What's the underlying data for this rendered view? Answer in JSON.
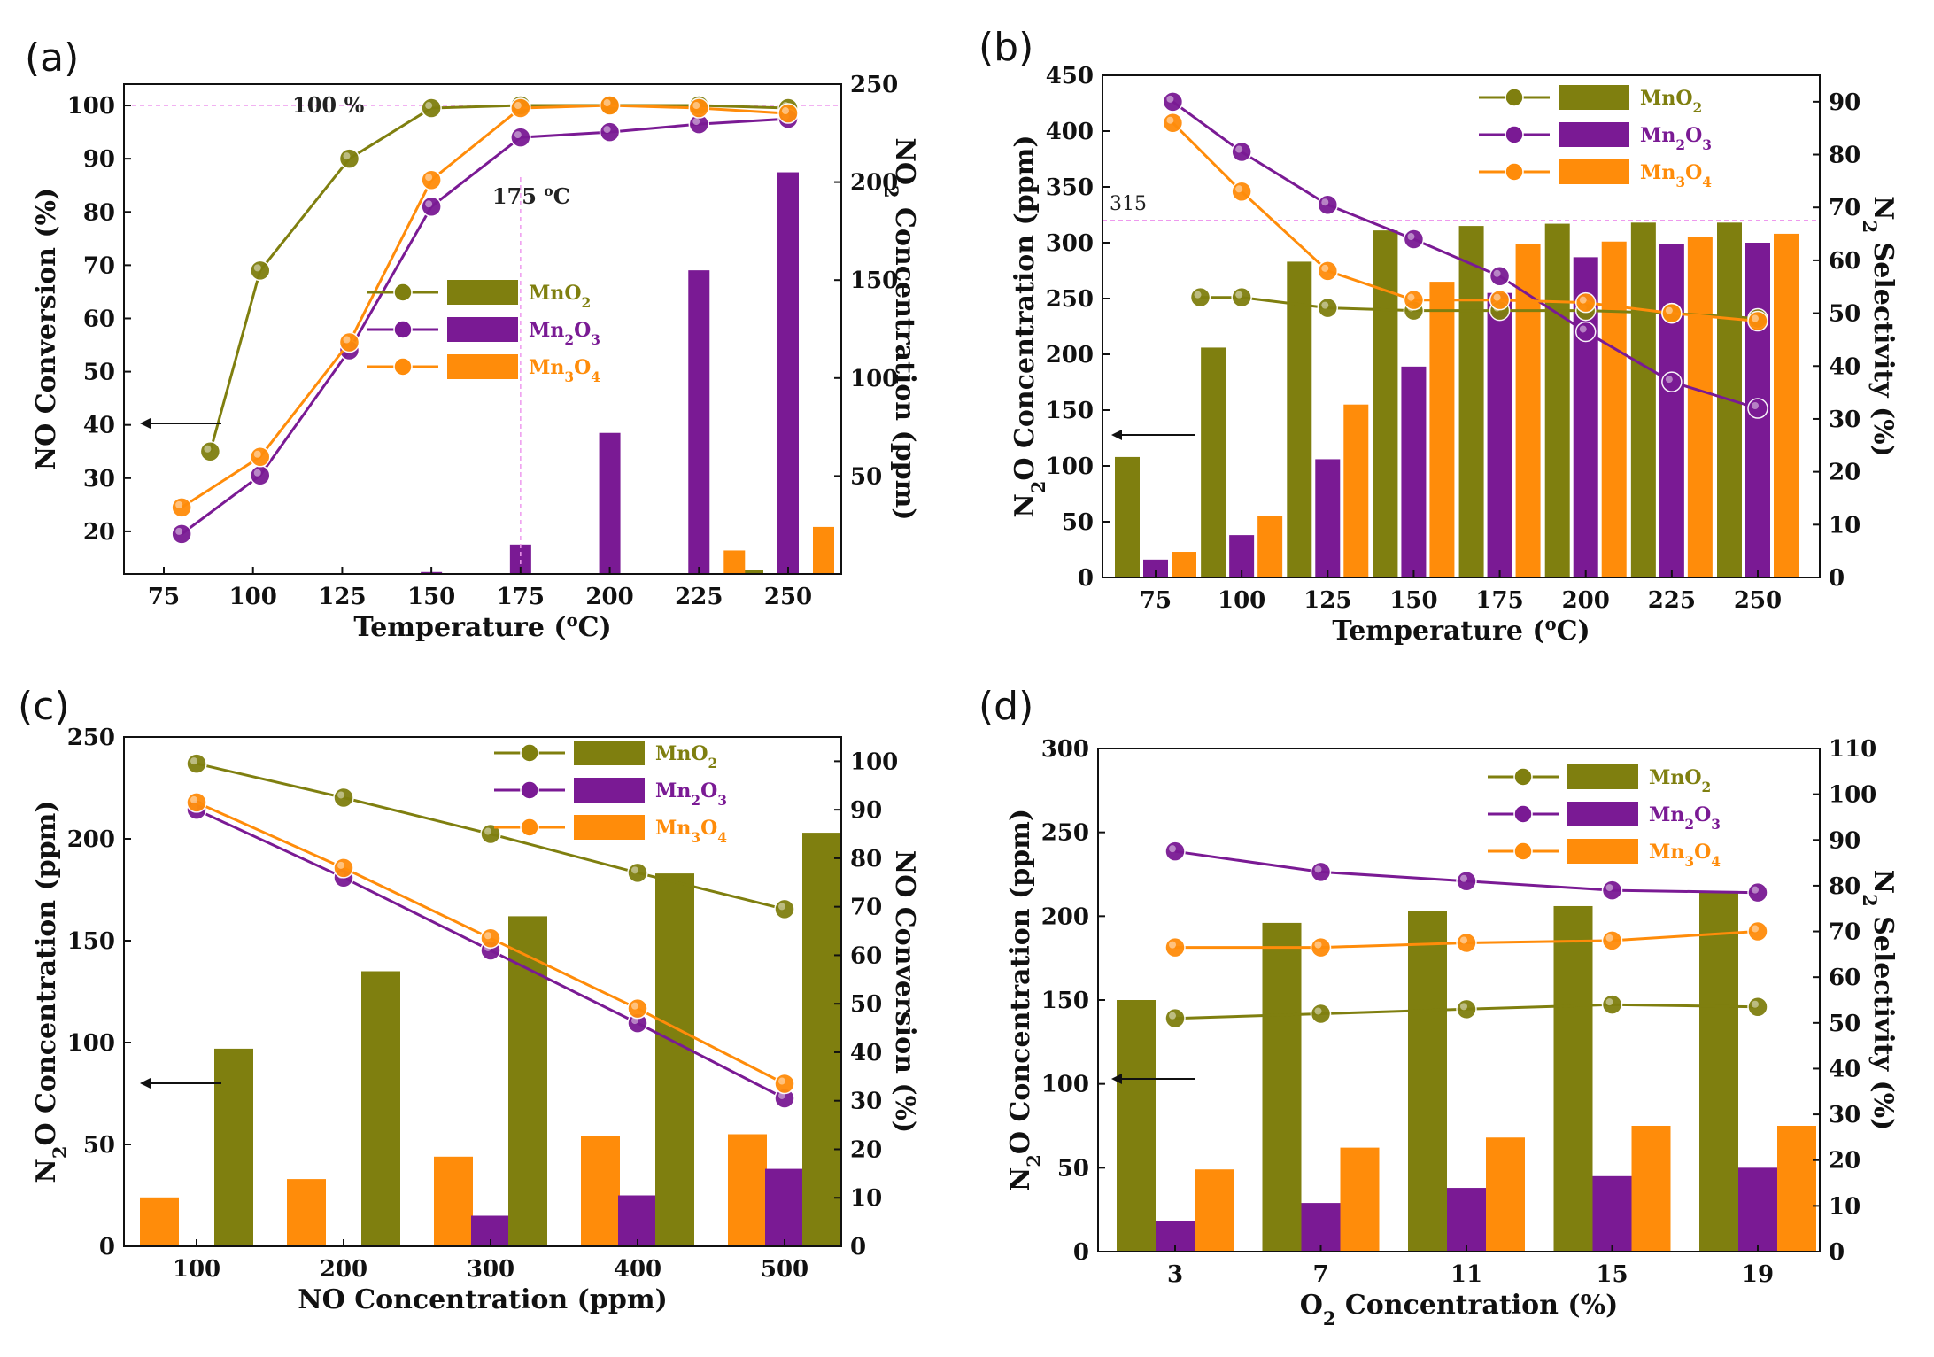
{
  "chart_data": [
    {
      "id": "a",
      "panel_label": "(a)",
      "type": "line+bar",
      "xlabel": "Temperature (°C)",
      "ylabel_left": "NO Conversion (%)",
      "ylabel_right": "NO2 Concentration (ppm)",
      "categories": [
        75,
        100,
        125,
        150,
        175,
        200,
        225,
        250
      ],
      "ylim_left": [
        12,
        104
      ],
      "ylim_right": [
        0,
        250
      ],
      "yticks_left": [
        20,
        30,
        40,
        50,
        60,
        70,
        80,
        90,
        100
      ],
      "yticks_right": [
        50,
        100,
        150,
        200,
        250
      ],
      "legend": [
        "MnO2",
        "Mn2O3",
        "Mn3O4"
      ],
      "annotations": [
        "100 %",
        "175 °C"
      ],
      "bar_series": [
        {
          "name": "MnO2",
          "values": [
            0,
            0,
            0,
            0,
            0,
            0,
            0,
            2
          ]
        },
        {
          "name": "Mn2O3",
          "values": [
            0,
            0,
            0,
            1,
            15,
            72,
            155,
            205
          ]
        },
        {
          "name": "Mn3O4",
          "values": [
            0,
            0,
            0,
            0,
            0,
            0,
            12,
            24
          ]
        }
      ],
      "line_series": [
        {
          "name": "MnO2",
          "x": [
            88,
            102,
            127,
            150,
            175,
            200,
            225,
            250
          ],
          "y": [
            35,
            69,
            90,
            99.5,
            100,
            100,
            100,
            99.5
          ]
        },
        {
          "name": "Mn2O3",
          "x": [
            80,
            102,
            127,
            150,
            175,
            200,
            225,
            250
          ],
          "y": [
            19.5,
            30.5,
            54,
            81,
            94,
            95,
            96.5,
            97.5
          ]
        },
        {
          "name": "Mn3O4",
          "x": [
            80,
            102,
            127,
            150,
            175,
            200,
            225,
            250
          ],
          "y": [
            24.5,
            34,
            55.5,
            86,
            99.5,
            100,
            99.5,
            98.5
          ]
        }
      ]
    },
    {
      "id": "b",
      "panel_label": "(b)",
      "type": "line+bar",
      "xlabel": "Temperature (°C)",
      "ylabel_left": "N2O Concentration (ppm)",
      "ylabel_right": "N2 Selectivity (%)",
      "categories": [
        75,
        100,
        125,
        150,
        175,
        200,
        225,
        250
      ],
      "ylim_left": [
        0,
        450
      ],
      "ylim_right": [
        0,
        95
      ],
      "yticks_left": [
        0,
        50,
        100,
        150,
        200,
        250,
        300,
        350,
        400,
        450
      ],
      "yticks_right": [
        0,
        10,
        20,
        30,
        40,
        50,
        60,
        70,
        80,
        90
      ],
      "legend": [
        "MnO2",
        "Mn2O3",
        "Mn3O4"
      ],
      "annotations": [
        "315"
      ],
      "bar_series": [
        {
          "name": "MnO2",
          "values": [
            108,
            206,
            283,
            311,
            315,
            317,
            318,
            318
          ]
        },
        {
          "name": "Mn2O3",
          "values": [
            16,
            38,
            106,
            189,
            255,
            287,
            299,
            300
          ]
        },
        {
          "name": "Mn3O4",
          "values": [
            23,
            55,
            155,
            265,
            299,
            301,
            305,
            308
          ]
        }
      ],
      "line_series": [
        {
          "name": "MnO2",
          "x": [
            88,
            100,
            125,
            150,
            175,
            200,
            225,
            250
          ],
          "y": [
            53,
            53,
            51,
            50.5,
            50.5,
            50.5,
            50,
            49
          ]
        },
        {
          "name": "Mn2O3",
          "x": [
            80,
            100,
            125,
            150,
            175,
            200,
            225,
            250
          ],
          "y": [
            90,
            80.5,
            70.5,
            64,
            57,
            46.5,
            37,
            32
          ]
        },
        {
          "name": "Mn3O4",
          "x": [
            80,
            100,
            125,
            150,
            175,
            200,
            225,
            250
          ],
          "y": [
            86,
            73,
            58,
            52.5,
            52.5,
            52,
            50,
            48.5
          ]
        }
      ]
    },
    {
      "id": "c",
      "panel_label": "(c)",
      "type": "line+bar",
      "xlabel": "NO Concentration (ppm)",
      "ylabel_left": "N2O Concentration (ppm)",
      "ylabel_right": "NO Conversion (%)",
      "categories": [
        100,
        200,
        300,
        400,
        500
      ],
      "ylim_left": [
        0,
        250
      ],
      "ylim_right": [
        0,
        105
      ],
      "yticks_left": [
        0,
        50,
        100,
        150,
        200,
        250
      ],
      "yticks_right": [
        0,
        10,
        20,
        30,
        40,
        50,
        60,
        70,
        80,
        90,
        100
      ],
      "legend": [
        "MnO2",
        "Mn2O3",
        "Mn3O4"
      ],
      "annotations": [],
      "bar_series": [
        {
          "name": "Mn3O4",
          "values": [
            24,
            33,
            44,
            54,
            55
          ]
        },
        {
          "name": "Mn2O3",
          "values": [
            0,
            0,
            15,
            25,
            38
          ]
        },
        {
          "name": "MnO2",
          "values": [
            97,
            135,
            162,
            183,
            203
          ]
        }
      ],
      "line_series": [
        {
          "name": "MnO2",
          "x": [
            100,
            200,
            300,
            400,
            500
          ],
          "y": [
            99.5,
            92.5,
            85,
            77,
            69.5
          ]
        },
        {
          "name": "Mn2O3",
          "x": [
            100,
            200,
            300,
            400,
            500
          ],
          "y": [
            90,
            76,
            61,
            46,
            30.5
          ]
        },
        {
          "name": "Mn3O4",
          "x": [
            100,
            200,
            300,
            400,
            500
          ],
          "y": [
            91.5,
            78,
            63.5,
            49,
            33.5
          ]
        }
      ]
    },
    {
      "id": "d",
      "panel_label": "(d)",
      "type": "line+bar",
      "xlabel": "O2 Concentration (%)",
      "ylabel_left": "N2O Concentration (ppm)",
      "ylabel_right": "N2 Selectivity (%)",
      "categories": [
        3,
        7,
        11,
        15,
        19
      ],
      "ylim_left": [
        0,
        300
      ],
      "ylim_right": [
        0,
        110
      ],
      "yticks_left": [
        0,
        50,
        100,
        150,
        200,
        250,
        300
      ],
      "yticks_right": [
        0,
        10,
        20,
        30,
        40,
        50,
        60,
        70,
        80,
        90,
        100,
        110
      ],
      "legend": [
        "MnO2",
        "Mn2O3",
        "Mn3O4"
      ],
      "annotations": [],
      "bar_series": [
        {
          "name": "MnO2",
          "values": [
            150,
            196,
            203,
            206,
            215
          ]
        },
        {
          "name": "Mn2O3",
          "values": [
            18,
            29,
            38,
            45,
            50
          ]
        },
        {
          "name": "Mn3O4",
          "values": [
            49,
            62,
            68,
            75,
            75
          ]
        }
      ],
      "line_series": [
        {
          "name": "MnO2",
          "x": [
            3,
            7,
            11,
            15,
            19
          ],
          "y": [
            51,
            52,
            53,
            54,
            53.5
          ]
        },
        {
          "name": "Mn2O3",
          "x": [
            3,
            7,
            11,
            15,
            19
          ],
          "y": [
            87.5,
            83,
            81,
            79,
            78.5
          ]
        },
        {
          "name": "Mn3O4",
          "x": [
            3,
            7,
            11,
            15,
            19
          ],
          "y": [
            66.5,
            66.5,
            67.5,
            68,
            70
          ]
        }
      ]
    }
  ],
  "colors": {
    "MnO2": "#7f7f0f",
    "Mn2O3": "#7a1a94",
    "Mn3O4": "#ff8c0a",
    "guide": "#ee99ee"
  }
}
